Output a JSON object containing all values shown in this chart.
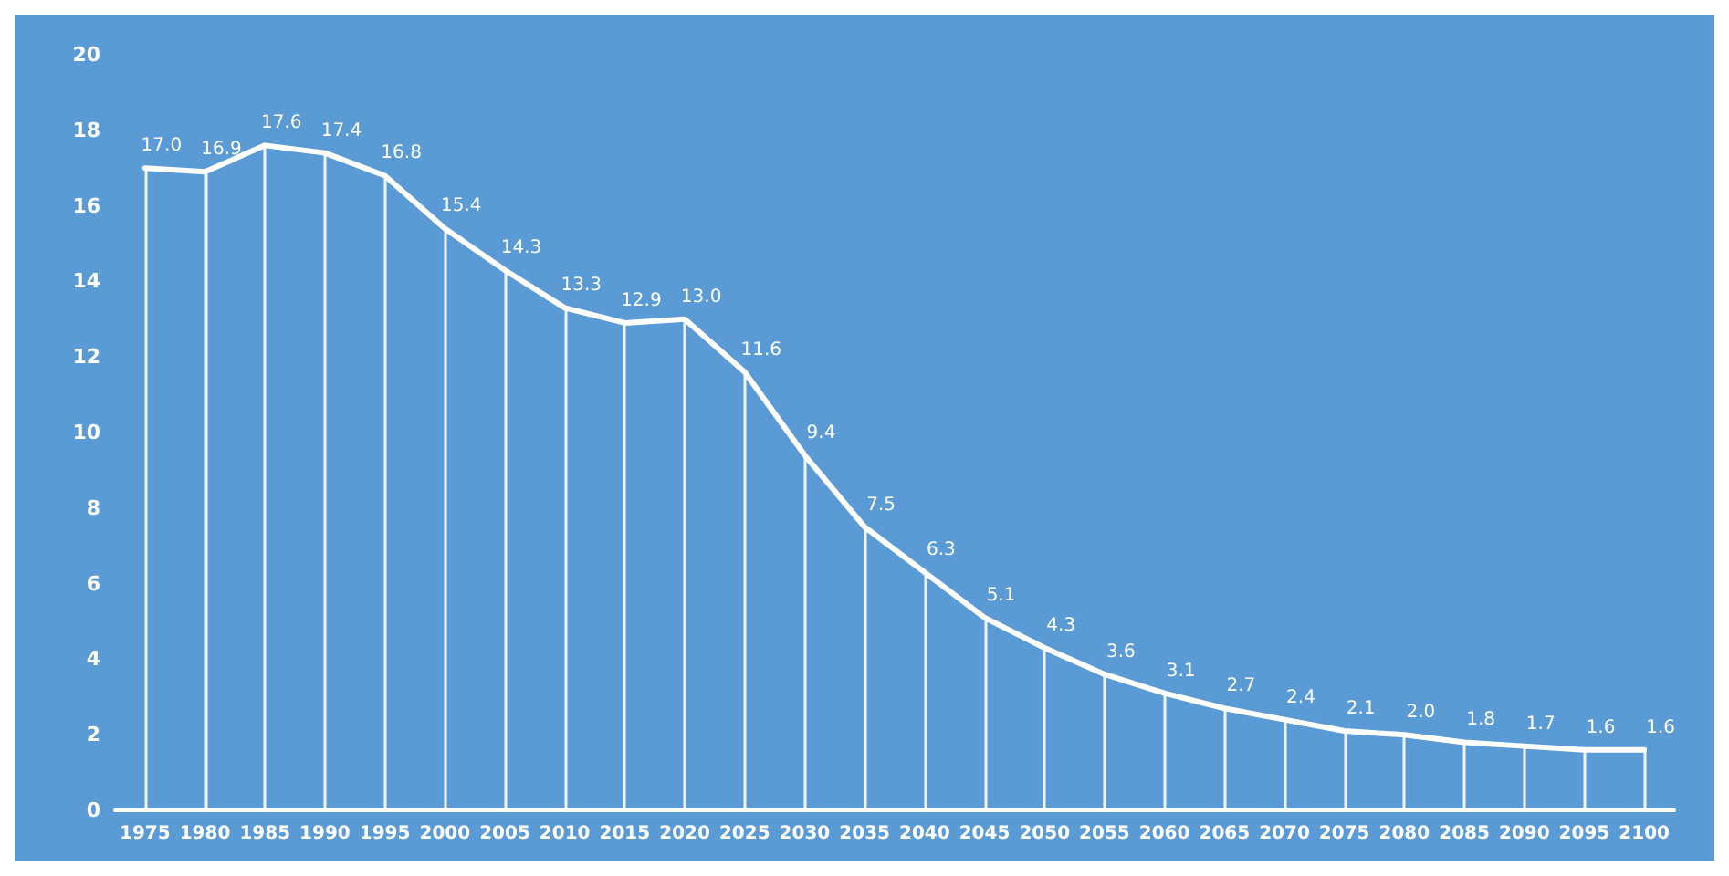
{
  "chart_data": {
    "type": "line",
    "categories": [
      "1975",
      "1980",
      "1985",
      "1990",
      "1995",
      "2000",
      "2005",
      "2010",
      "2015",
      "2020",
      "2025",
      "2030",
      "2035",
      "2040",
      "2045",
      "2050",
      "2055",
      "2060",
      "2065",
      "2070",
      "2075",
      "2080",
      "2085",
      "2090",
      "2095",
      "2100"
    ],
    "series": [
      {
        "color": "#ffffff",
        "values": [
          17.0,
          16.9,
          17.6,
          17.4,
          16.8,
          15.4,
          14.3,
          13.3,
          12.9,
          13.0,
          11.6,
          9.4,
          7.5,
          6.3,
          5.1,
          4.3,
          3.6,
          3.1,
          2.7,
          2.4,
          2.1,
          2.0,
          1.8,
          1.7,
          1.6,
          1.6
        ],
        "value_labels": [
          "17.0",
          "16.9",
          "17.6",
          "17.4",
          "16.8",
          "15.4",
          "14.3",
          "13.3",
          "12.9",
          "13.0",
          "11.6",
          "9.4",
          "7.5",
          "6.3",
          "5.1",
          "4.3",
          "3.6",
          "3.1",
          "2.7",
          "2.4",
          "2.1",
          "2.0",
          "1.8",
          "1.7",
          "1.6",
          "1.6"
        ]
      }
    ],
    "ylim": [
      0,
      20
    ],
    "yticks": [
      0,
      2,
      4,
      6,
      8,
      10,
      12,
      14,
      16,
      18,
      20
    ],
    "grid": "x",
    "marker": "none",
    "line_style": "solid"
  }
}
